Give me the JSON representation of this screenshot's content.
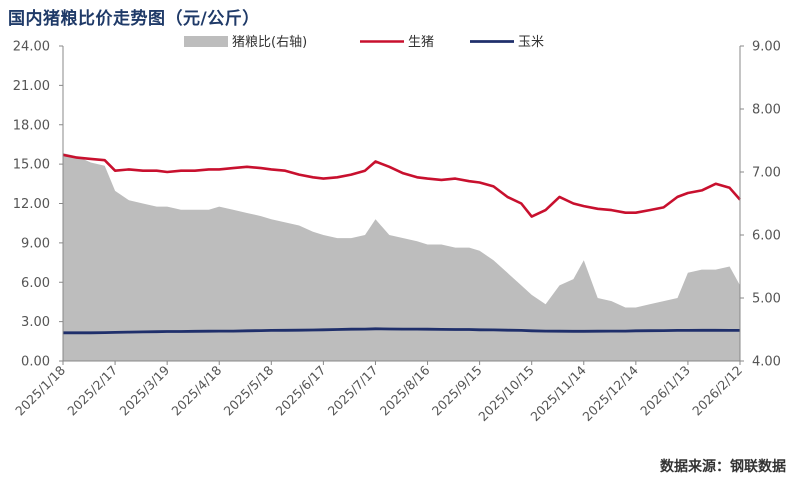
{
  "title": "国内猪粮比价走势图（元/公斤）",
  "source": "数据来源：钢联数据",
  "colors": {
    "ratio_fill": "#bdbdbd",
    "hog": "#c8102e",
    "corn": "#1f2f6b",
    "axis": "#888888",
    "title": "#1f3a68"
  },
  "chart_data": {
    "type": "line",
    "title": "国内猪粮比价走势图（元/公斤）",
    "legend": {
      "placement": "top-center",
      "entries": [
        "猪粮比(右轴)",
        "生猪",
        "玉米"
      ]
    },
    "left_axis": {
      "ylim": [
        0,
        24
      ],
      "ticks": [
        "0.00",
        "3.00",
        "6.00",
        "9.00",
        "12.00",
        "15.00",
        "18.00",
        "21.00",
        "24.00"
      ]
    },
    "right_axis": {
      "ylim": [
        4,
        9
      ],
      "ticks": [
        "4.00",
        "5.00",
        "6.00",
        "7.00",
        "8.00",
        "9.00"
      ]
    },
    "x_ticks": [
      "2025/1/18",
      "2025/2/17",
      "2025/3/19",
      "2025/4/18",
      "2025/5/18",
      "2025/6/17",
      "2025/7/17",
      "2025/8/16",
      "2025/9/15",
      "2025/10/15",
      "2025/11/14",
      "2025/12/14",
      "2026/1/13",
      "2026/2/12"
    ],
    "x": [
      "2025/1/18",
      "2025/1/26",
      "2025/2/3",
      "2025/2/11",
      "2025/2/17",
      "2025/2/25",
      "2025/3/5",
      "2025/3/13",
      "2025/3/19",
      "2025/3/27",
      "2025/4/4",
      "2025/4/12",
      "2025/4/18",
      "2025/4/26",
      "2025/5/4",
      "2025/5/12",
      "2025/5/18",
      "2025/5/26",
      "2025/6/3",
      "2025/6/11",
      "2025/6/17",
      "2025/6/25",
      "2025/7/3",
      "2025/7/11",
      "2025/7/17",
      "2025/7/25",
      "2025/8/2",
      "2025/8/10",
      "2025/8/16",
      "2025/8/24",
      "2025/9/1",
      "2025/9/9",
      "2025/9/15",
      "2025/9/23",
      "2025/10/1",
      "2025/10/9",
      "2025/10/15",
      "2025/10/23",
      "2025/10/31",
      "2025/11/8",
      "2025/11/14",
      "2025/11/22",
      "2025/11/30",
      "2025/12/8",
      "2025/12/14",
      "2025/12/22",
      "2025/12/30",
      "2026/1/7",
      "2026/1/13",
      "2026/1/21",
      "2026/1/29",
      "2026/2/6",
      "2026/2/12"
    ],
    "series": [
      {
        "name": "猪粮比(右轴)",
        "type": "area",
        "axis": "right",
        "values": [
          7.3,
          7.25,
          7.15,
          7.1,
          6.7,
          6.55,
          6.5,
          6.45,
          6.45,
          6.4,
          6.4,
          6.4,
          6.45,
          6.4,
          6.35,
          6.3,
          6.25,
          6.2,
          6.15,
          6.05,
          6.0,
          5.95,
          5.95,
          6.0,
          6.25,
          6.0,
          5.95,
          5.9,
          5.85,
          5.85,
          5.8,
          5.8,
          5.75,
          5.6,
          5.4,
          5.2,
          5.05,
          4.9,
          5.2,
          5.3,
          5.6,
          5.0,
          4.95,
          4.85,
          4.85,
          4.9,
          4.95,
          5.0,
          5.4,
          5.45,
          5.45,
          5.5,
          5.2
        ]
      },
      {
        "name": "生猪",
        "type": "line",
        "axis": "left",
        "values": [
          15.7,
          15.5,
          15.4,
          15.3,
          14.5,
          14.6,
          14.5,
          14.5,
          14.4,
          14.5,
          14.5,
          14.6,
          14.6,
          14.7,
          14.8,
          14.7,
          14.6,
          14.5,
          14.2,
          14.0,
          13.9,
          14.0,
          14.2,
          14.5,
          15.2,
          14.8,
          14.3,
          14.0,
          13.9,
          13.8,
          13.9,
          13.7,
          13.6,
          13.3,
          12.5,
          12.0,
          11.0,
          11.5,
          12.5,
          12.0,
          11.8,
          11.6,
          11.5,
          11.3,
          11.3,
          11.5,
          11.7,
          12.5,
          12.8,
          13.0,
          13.5,
          13.2,
          12.3
        ]
      },
      {
        "name": "玉米",
        "type": "line",
        "axis": "left",
        "values": [
          2.15,
          2.15,
          2.15,
          2.16,
          2.18,
          2.2,
          2.22,
          2.23,
          2.25,
          2.25,
          2.26,
          2.27,
          2.28,
          2.28,
          2.3,
          2.32,
          2.33,
          2.34,
          2.35,
          2.36,
          2.38,
          2.4,
          2.42,
          2.43,
          2.45,
          2.44,
          2.43,
          2.43,
          2.42,
          2.41,
          2.4,
          2.4,
          2.38,
          2.37,
          2.35,
          2.33,
          2.3,
          2.28,
          2.27,
          2.26,
          2.26,
          2.27,
          2.28,
          2.28,
          2.3,
          2.31,
          2.32,
          2.33,
          2.33,
          2.34,
          2.34,
          2.33,
          2.33
        ]
      }
    ]
  }
}
